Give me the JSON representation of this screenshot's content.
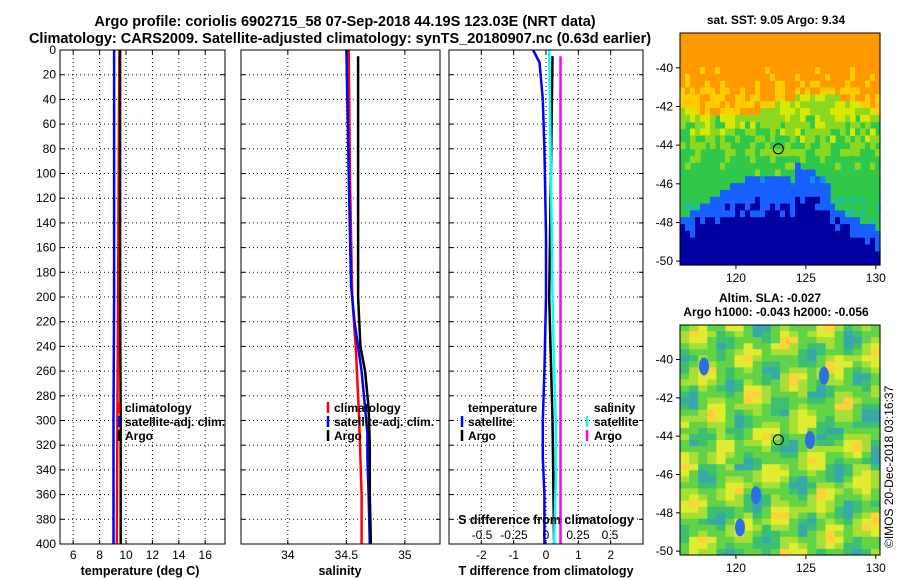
{
  "title": {
    "line1": "Argo profile: coriolis 6902715_58 07-Sep-2018 44.19S 123.03E (NRT data)",
    "line2": "Climatology: CARS2009. Satellite-adjusted climatology: synTS_20180907.nc (0.63d earlier)"
  },
  "watermark": "©IMOS 20-Dec-2018 03:16:37",
  "colors": {
    "climatology": "#ff0000",
    "satellite": "#0000ff",
    "argo": "#000000",
    "sal_satellite": "#00ffff",
    "sal_argo": "#ff00ff"
  },
  "chart_data": [
    {
      "type": "line",
      "name": "temperature",
      "xlabel": "temperature (deg C)",
      "ylabel": "",
      "xlim": [
        5,
        17.5
      ],
      "ylim": [
        400,
        0
      ],
      "xticks": [
        6,
        8,
        10,
        12,
        14,
        16
      ],
      "yticks": [
        0,
        20,
        40,
        60,
        80,
        100,
        120,
        140,
        160,
        180,
        200,
        220,
        240,
        260,
        280,
        300,
        320,
        340,
        360,
        380,
        400
      ],
      "grid": true,
      "legend": [
        "climatology",
        "satellite-adj. clim.",
        "Argo"
      ],
      "series": [
        {
          "name": "climatology",
          "color": "#ff0000",
          "depth": [
            0,
            100,
            200,
            300,
            400
          ],
          "values": [
            9.5,
            9.45,
            9.4,
            9.35,
            9.3
          ]
        },
        {
          "name": "satellite-adj. clim.",
          "color": "#0000ff",
          "depth": [
            0,
            100,
            200,
            300,
            400
          ],
          "values": [
            9.1,
            9.1,
            9.1,
            9.05,
            9.05
          ]
        },
        {
          "name": "Argo",
          "color": "#000000",
          "depth": [
            0,
            100,
            200,
            300,
            400
          ],
          "values": [
            9.55,
            9.55,
            9.55,
            9.6,
            9.6
          ]
        }
      ]
    },
    {
      "type": "line",
      "name": "salinity",
      "xlabel": "salinity",
      "xlim": [
        33.6,
        35.3
      ],
      "ylim": [
        400,
        0
      ],
      "xticks": [
        34,
        34.5,
        35
      ],
      "grid": true,
      "legend": [
        "climatology",
        "satellite-adj. clim.",
        "Argo"
      ],
      "series": [
        {
          "name": "climatology",
          "color": "#ff0000",
          "depth": [
            0,
            100,
            200,
            240,
            280,
            300,
            330,
            360,
            400
          ],
          "values": [
            34.52,
            34.53,
            34.55,
            34.58,
            34.6,
            34.61,
            34.62,
            34.63,
            34.63
          ]
        },
        {
          "name": "satellite-adj. clim.",
          "color": "#0000ff",
          "depth": [
            0,
            100,
            190,
            220,
            260,
            290,
            310,
            330,
            360,
            400
          ],
          "values": [
            34.5,
            34.52,
            34.54,
            34.57,
            34.63,
            34.66,
            34.68,
            34.68,
            34.69,
            34.7
          ]
        },
        {
          "name": "Argo",
          "color": "#000000",
          "depth": [
            5,
            100,
            200,
            240,
            260,
            290,
            320,
            340,
            360,
            400
          ],
          "values": [
            34.6,
            34.6,
            34.6,
            34.62,
            34.66,
            34.69,
            34.7,
            34.7,
            34.7,
            34.71
          ]
        }
      ]
    },
    {
      "type": "line",
      "name": "difference",
      "xlabel": "T difference from climatology",
      "xlim": [
        -3,
        3
      ],
      "ylim": [
        400,
        0
      ],
      "xticks": [
        -2,
        -1,
        0,
        1,
        2
      ],
      "top_axis_label": "S difference from climatology",
      "top_ticks": [
        -0.5,
        -0.25,
        0,
        0.25,
        0.5
      ],
      "grid": true,
      "legend": [
        "temperature satellite",
        "temperature Argo",
        "salinity satellite",
        "salinity Argo"
      ],
      "series": [
        {
          "name": "temperature satellite",
          "color": "#0000ff",
          "depth": [
            0,
            10,
            40,
            80,
            150,
            200,
            260,
            300,
            330,
            360,
            400
          ],
          "values": [
            -0.4,
            -0.2,
            -0.1,
            -0.05,
            0,
            0,
            -0.05,
            -0.1,
            -0.1,
            -0.05,
            -0.05
          ]
        },
        {
          "name": "temperature Argo",
          "color": "#000000",
          "depth": [
            5,
            100,
            200,
            300,
            400
          ],
          "values": [
            0.2,
            0.15,
            0.1,
            0.2,
            0.25
          ]
        },
        {
          "name": "salinity satellite",
          "color": "#00ffff",
          "depth": [
            0,
            100,
            200,
            260,
            300,
            350,
            400
          ],
          "values": [
            0.1,
            0.15,
            0.2,
            0.25,
            0.3,
            0.3,
            0.25
          ]
        },
        {
          "name": "salinity Argo",
          "color": "#ff00ff",
          "depth": [
            5,
            100,
            200,
            300,
            400
          ],
          "values": [
            0.45,
            0.45,
            0.45,
            0.45,
            0.45
          ]
        }
      ]
    },
    {
      "type": "heatmap",
      "name": "sst-map",
      "title": "sat. SST: 9.05 Argo: 9.34",
      "xticks": [
        120,
        125,
        130
      ],
      "yticks": [
        -40,
        -42,
        -44,
        -46,
        -48,
        -50
      ],
      "xlim": [
        116,
        130.3
      ],
      "ylim": [
        -50.2,
        -38.2
      ],
      "marker": {
        "lon": 123.03,
        "lat": -44.19
      }
    },
    {
      "type": "heatmap",
      "name": "sla-map",
      "title_line1": "Altim. SLA: -0.027",
      "title_line2": "Argo h1000: -0.043 h2000: -0.056",
      "xticks": [
        120,
        125,
        130
      ],
      "yticks": [
        -40,
        -42,
        -44,
        -46,
        -48,
        -50
      ],
      "xlim": [
        116,
        130.3
      ],
      "ylim": [
        -50.2,
        -38.2
      ],
      "marker": {
        "lon": 123.03,
        "lat": -44.19
      }
    }
  ],
  "legends": {
    "temperature": [
      "climatology",
      "satellite-adj. clim.",
      "Argo"
    ],
    "salinity": [
      "climatology",
      "satellite-adj. clim.",
      "Argo"
    ],
    "difference": {
      "left_header": "temperature",
      "left_items": [
        "satellite",
        "Argo"
      ],
      "right_header": "salinity",
      "right_items": [
        "satellite",
        "Argo"
      ]
    }
  }
}
